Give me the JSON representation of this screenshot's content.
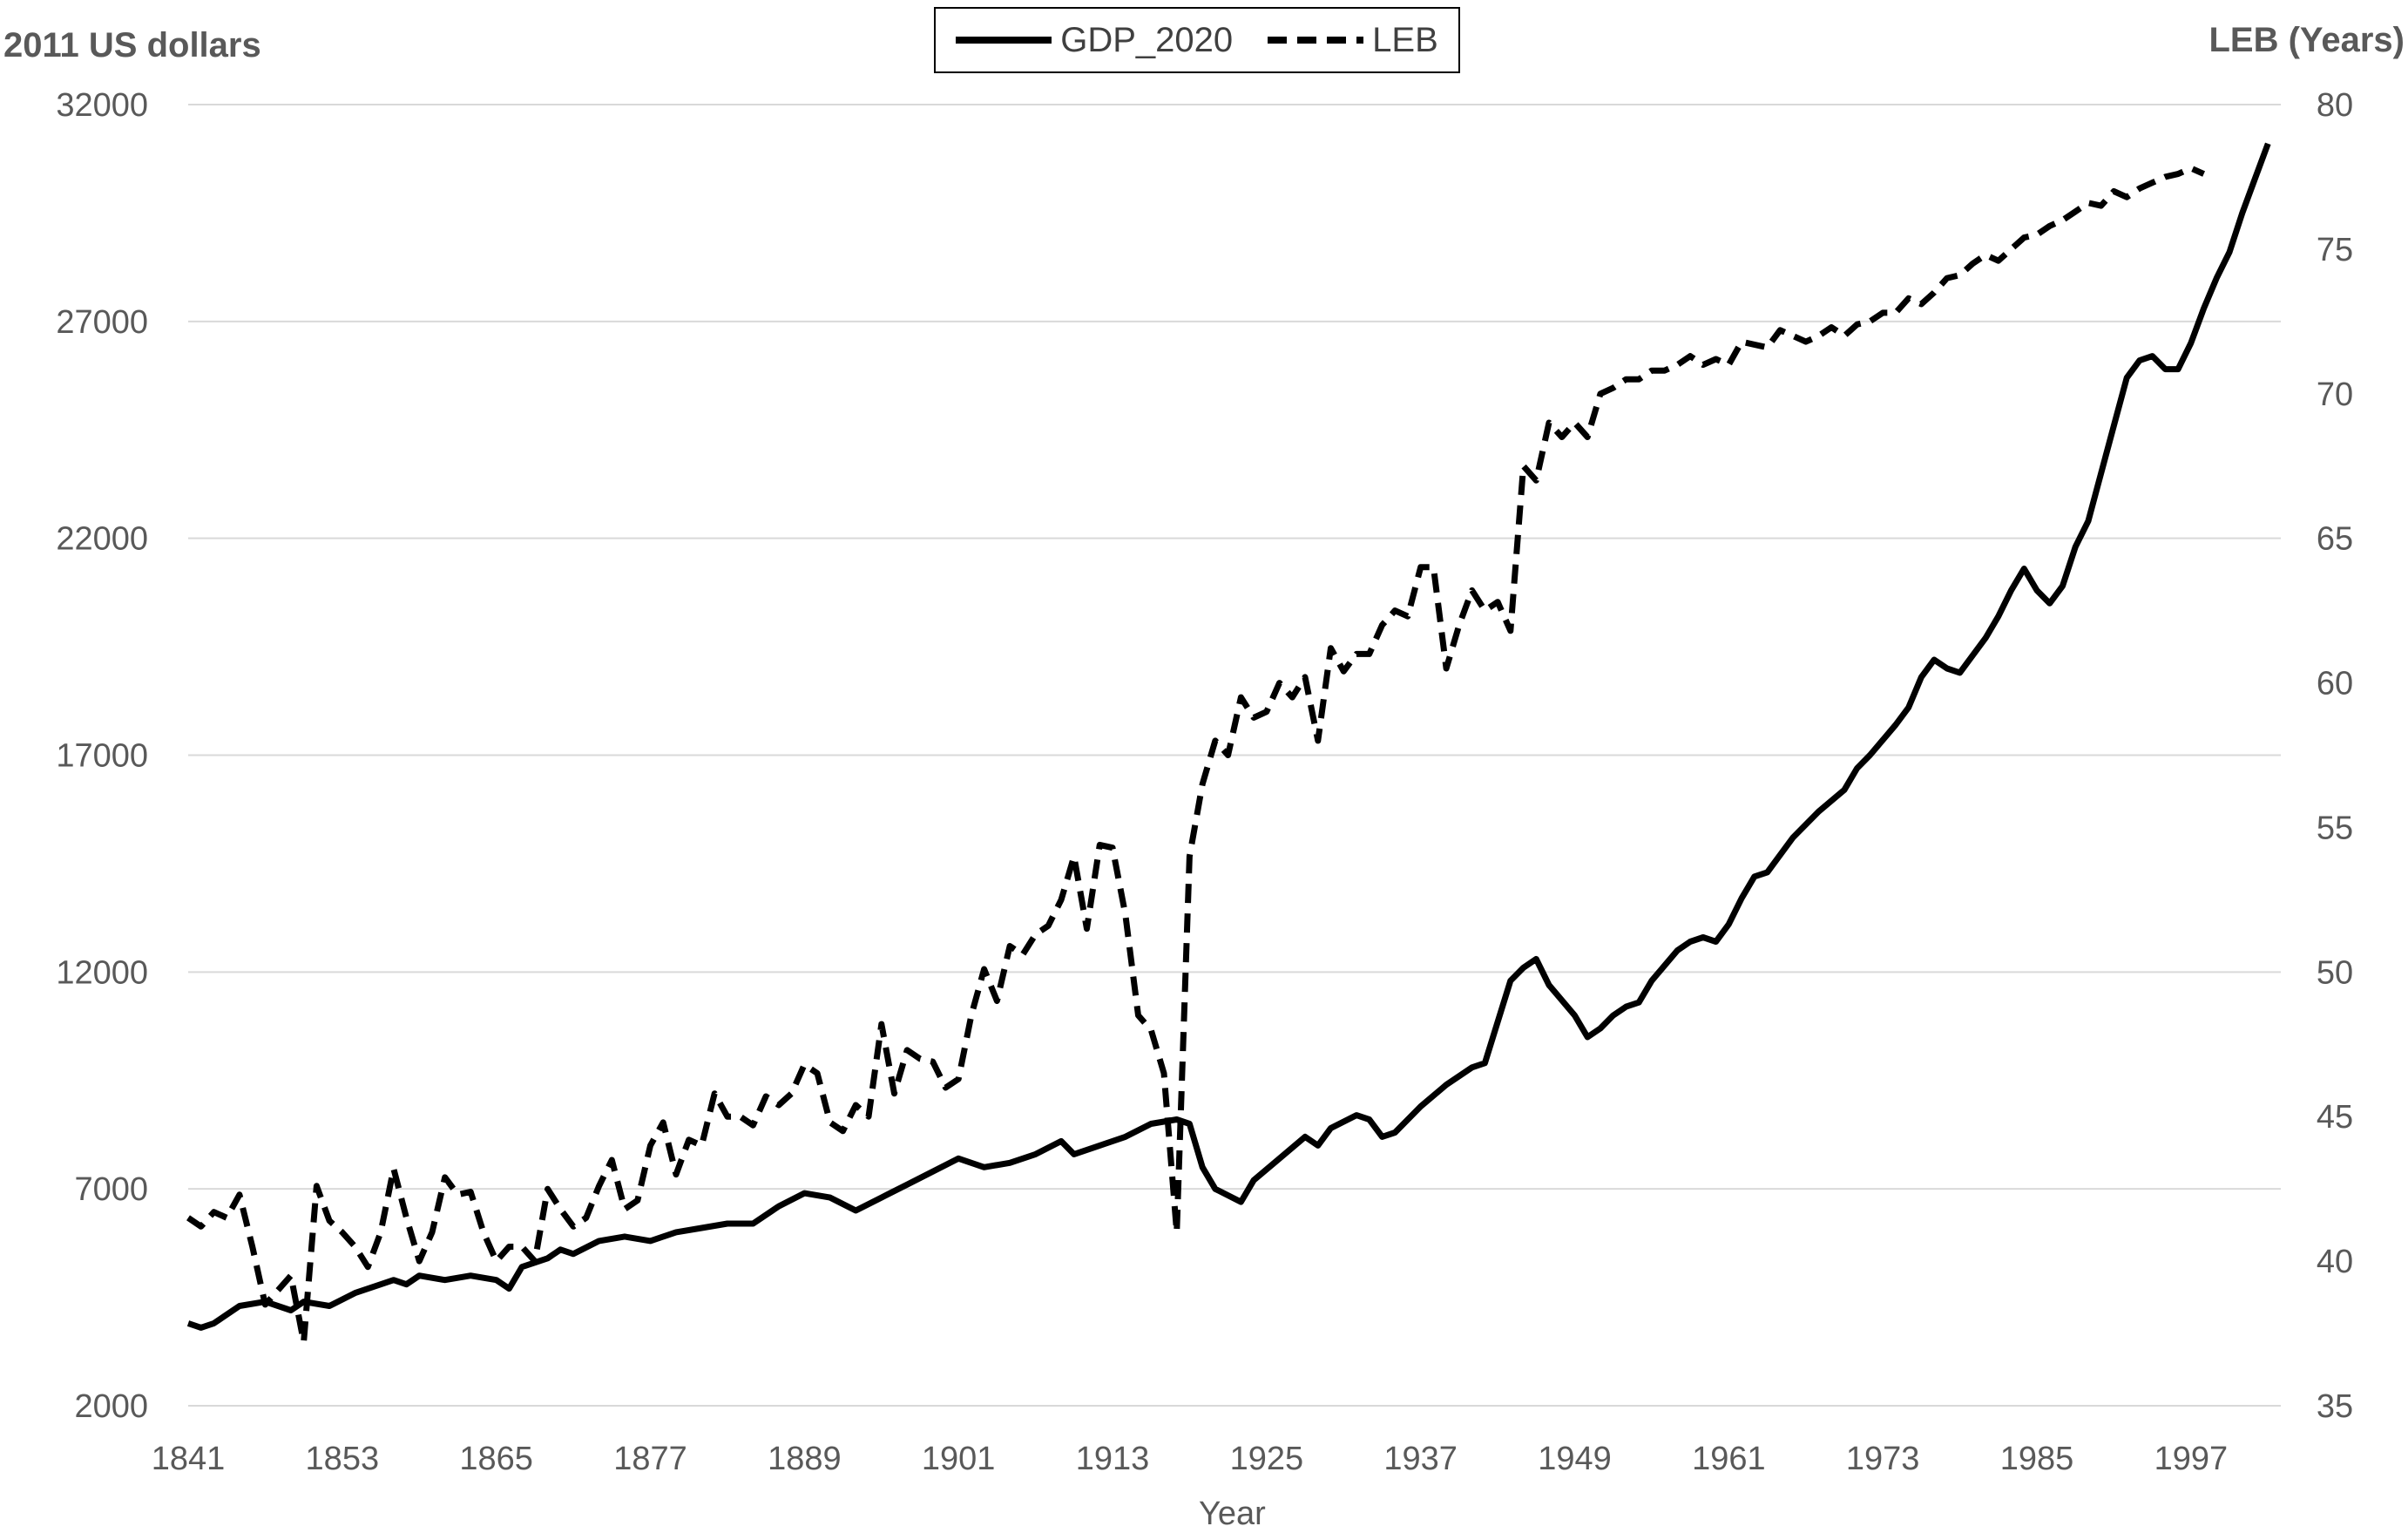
{
  "chart_data": {
    "type": "line",
    "title": "",
    "xlabel": "Year",
    "ylabel_left": "2011 US dollars",
    "ylabel_right": "LEB (Years)",
    "x_ticks": [
      "1841",
      "1853",
      "1865",
      "1877",
      "1889",
      "1901",
      "1913",
      "1925",
      "1937",
      "1949",
      "1961",
      "1973",
      "1985",
      "1997"
    ],
    "y_left_ticks": [
      "2000",
      "7000",
      "12000",
      "17000",
      "22000",
      "27000",
      "32000"
    ],
    "y_right_ticks": [
      "35",
      "40",
      "45",
      "50",
      "55",
      "60",
      "65",
      "70",
      "75",
      "80"
    ],
    "ylim_left": [
      2000,
      32000
    ],
    "ylim_right": [
      35,
      80
    ],
    "xlim": [
      1841,
      1998
    ],
    "grid": "horizontal",
    "legend_position": "top-center",
    "series": [
      {
        "name": "GDP_2020",
        "axis": "left",
        "style": "solid",
        "color": "#000000",
        "points": [
          [
            1841,
            3900
          ],
          [
            1842,
            3800
          ],
          [
            1843,
            3900
          ],
          [
            1845,
            4300
          ],
          [
            1847,
            4400
          ],
          [
            1849,
            4200
          ],
          [
            1850,
            4400
          ],
          [
            1852,
            4300
          ],
          [
            1854,
            4600
          ],
          [
            1856,
            4800
          ],
          [
            1857,
            4900
          ],
          [
            1858,
            4800
          ],
          [
            1859,
            5000
          ],
          [
            1861,
            4900
          ],
          [
            1863,
            5000
          ],
          [
            1865,
            4900
          ],
          [
            1866,
            4700
          ],
          [
            1867,
            5200
          ],
          [
            1869,
            5400
          ],
          [
            1870,
            5600
          ],
          [
            1871,
            5500
          ],
          [
            1873,
            5800
          ],
          [
            1875,
            5900
          ],
          [
            1877,
            5800
          ],
          [
            1879,
            6000
          ],
          [
            1881,
            6100
          ],
          [
            1883,
            6200
          ],
          [
            1885,
            6200
          ],
          [
            1887,
            6600
          ],
          [
            1889,
            6900
          ],
          [
            1891,
            6800
          ],
          [
            1893,
            6500
          ],
          [
            1895,
            6800
          ],
          [
            1897,
            7100
          ],
          [
            1899,
            7400
          ],
          [
            1901,
            7700
          ],
          [
            1903,
            7500
          ],
          [
            1905,
            7600
          ],
          [
            1907,
            7800
          ],
          [
            1909,
            8100
          ],
          [
            1910,
            7800
          ],
          [
            1912,
            8000
          ],
          [
            1914,
            8200
          ],
          [
            1916,
            8500
          ],
          [
            1918,
            8600
          ],
          [
            1919,
            8500
          ],
          [
            1920,
            7500
          ],
          [
            1921,
            7000
          ],
          [
            1923,
            6700
          ],
          [
            1924,
            7200
          ],
          [
            1926,
            7700
          ],
          [
            1928,
            8200
          ],
          [
            1929,
            8000
          ],
          [
            1930,
            8400
          ],
          [
            1932,
            8700
          ],
          [
            1933,
            8600
          ],
          [
            1934,
            8200
          ],
          [
            1935,
            8300
          ],
          [
            1937,
            8900
          ],
          [
            1939,
            9400
          ],
          [
            1941,
            9800
          ],
          [
            1942,
            9900
          ],
          [
            1944,
            11800
          ],
          [
            1945,
            12100
          ],
          [
            1946,
            12300
          ],
          [
            1947,
            11700
          ],
          [
            1949,
            11000
          ],
          [
            1950,
            10500
          ],
          [
            1951,
            10700
          ],
          [
            1952,
            11000
          ],
          [
            1953,
            11200
          ],
          [
            1954,
            11300
          ],
          [
            1955,
            11800
          ],
          [
            1957,
            12500
          ],
          [
            1958,
            12700
          ],
          [
            1959,
            12800
          ],
          [
            1960,
            12700
          ],
          [
            1961,
            13100
          ],
          [
            1962,
            13700
          ],
          [
            1963,
            14200
          ],
          [
            1964,
            14300
          ],
          [
            1966,
            15100
          ],
          [
            1968,
            15700
          ],
          [
            1970,
            16200
          ],
          [
            1971,
            16700
          ],
          [
            1972,
            17000
          ],
          [
            1974,
            17700
          ],
          [
            1975,
            18100
          ],
          [
            1976,
            18800
          ],
          [
            1977,
            19200
          ],
          [
            1978,
            19000
          ],
          [
            1979,
            18900
          ],
          [
            1981,
            19700
          ],
          [
            1982,
            20200
          ],
          [
            1983,
            20800
          ],
          [
            1984,
            21300
          ],
          [
            1985,
            20800
          ],
          [
            1986,
            20500
          ],
          [
            1987,
            20900
          ],
          [
            1988,
            21800
          ],
          [
            1989,
            22400
          ],
          [
            1990,
            23500
          ],
          [
            1991,
            24600
          ],
          [
            1992,
            25700
          ],
          [
            1993,
            26100
          ],
          [
            1994,
            26200
          ],
          [
            1995,
            25900
          ],
          [
            1996,
            25900
          ],
          [
            1997,
            26500
          ],
          [
            1998,
            27300
          ],
          [
            1999,
            28000
          ],
          [
            2000,
            28600
          ],
          [
            2001,
            29500
          ],
          [
            2002,
            30300
          ],
          [
            2003,
            31100
          ]
        ]
      },
      {
        "name": "LEB",
        "axis": "right",
        "style": "dashed",
        "color": "#000000",
        "points": [
          [
            1841,
            41.5
          ],
          [
            1842,
            41.2
          ],
          [
            1843,
            41.7
          ],
          [
            1844,
            41.5
          ],
          [
            1845,
            42.3
          ],
          [
            1846,
            40.5
          ],
          [
            1847,
            38.5
          ],
          [
            1848,
            39.0
          ],
          [
            1849,
            39.5
          ],
          [
            1850,
            37.2
          ],
          [
            1851,
            42.6
          ],
          [
            1852,
            41.4
          ],
          [
            1853,
            41.0
          ],
          [
            1854,
            40.5
          ],
          [
            1855,
            39.8
          ],
          [
            1856,
            41.0
          ],
          [
            1857,
            43.2
          ],
          [
            1858,
            41.5
          ],
          [
            1859,
            40.0
          ],
          [
            1860,
            41.0
          ],
          [
            1861,
            42.9
          ],
          [
            1862,
            42.3
          ],
          [
            1863,
            42.4
          ],
          [
            1864,
            41.0
          ],
          [
            1865,
            40.0
          ],
          [
            1866,
            40.5
          ],
          [
            1867,
            40.5
          ],
          [
            1868,
            40.0
          ],
          [
            1869,
            42.5
          ],
          [
            1870,
            41.8
          ],
          [
            1871,
            41.2
          ],
          [
            1872,
            41.5
          ],
          [
            1873,
            42.6
          ],
          [
            1874,
            43.5
          ],
          [
            1875,
            41.8
          ],
          [
            1876,
            42.1
          ],
          [
            1877,
            44.0
          ],
          [
            1878,
            44.8
          ],
          [
            1879,
            43.0
          ],
          [
            1880,
            44.2
          ],
          [
            1881,
            44.0
          ],
          [
            1882,
            45.8
          ],
          [
            1883,
            45.0
          ],
          [
            1884,
            45.0
          ],
          [
            1885,
            44.7
          ],
          [
            1886,
            45.7
          ],
          [
            1887,
            45.4
          ],
          [
            1888,
            45.8
          ],
          [
            1889,
            46.8
          ],
          [
            1890,
            46.5
          ],
          [
            1891,
            44.8
          ],
          [
            1892,
            44.5
          ],
          [
            1893,
            45.4
          ],
          [
            1894,
            45.0
          ],
          [
            1895,
            48.2
          ],
          [
            1896,
            45.8
          ],
          [
            1897,
            47.3
          ],
          [
            1898,
            47.0
          ],
          [
            1899,
            46.9
          ],
          [
            1900,
            46.0
          ],
          [
            1901,
            46.3
          ],
          [
            1902,
            48.5
          ],
          [
            1903,
            50.1
          ],
          [
            1904,
            49.0
          ],
          [
            1905,
            50.9
          ],
          [
            1906,
            50.6
          ],
          [
            1907,
            51.3
          ],
          [
            1908,
            51.6
          ],
          [
            1909,
            52.5
          ],
          [
            1910,
            54.0
          ],
          [
            1911,
            51.5
          ],
          [
            1912,
            54.4
          ],
          [
            1913,
            54.3
          ],
          [
            1914,
            52.0
          ],
          [
            1915,
            48.5
          ],
          [
            1916,
            48.0
          ],
          [
            1917,
            46.5
          ],
          [
            1918,
            41.0
          ],
          [
            1919,
            54.0
          ],
          [
            1920,
            56.5
          ],
          [
            1921,
            58.0
          ],
          [
            1922,
            57.5
          ],
          [
            1923,
            59.5
          ],
          [
            1924,
            58.8
          ],
          [
            1925,
            59.0
          ],
          [
            1926,
            60.0
          ],
          [
            1927,
            59.5
          ],
          [
            1928,
            60.2
          ],
          [
            1929,
            58.0
          ],
          [
            1930,
            61.2
          ],
          [
            1931,
            60.4
          ],
          [
            1932,
            61.0
          ],
          [
            1933,
            61.0
          ],
          [
            1934,
            62.0
          ],
          [
            1935,
            62.5
          ],
          [
            1936,
            62.3
          ],
          [
            1937,
            64.0
          ],
          [
            1938,
            64.0
          ],
          [
            1939,
            60.5
          ],
          [
            1940,
            62.0
          ],
          [
            1941,
            63.2
          ],
          [
            1942,
            62.5
          ],
          [
            1943,
            62.8
          ],
          [
            1944,
            61.8
          ],
          [
            1945,
            67.5
          ],
          [
            1946,
            67.0
          ],
          [
            1947,
            69.0
          ],
          [
            1948,
            68.5
          ],
          [
            1949,
            69.0
          ],
          [
            1950,
            68.5
          ],
          [
            1951,
            70.0
          ],
          [
            1952,
            70.2
          ],
          [
            1953,
            70.5
          ],
          [
            1954,
            70.5
          ],
          [
            1955,
            70.8
          ],
          [
            1956,
            70.8
          ],
          [
            1957,
            71.0
          ],
          [
            1958,
            71.3
          ],
          [
            1959,
            71.0
          ],
          [
            1960,
            71.2
          ],
          [
            1961,
            71.0
          ],
          [
            1962,
            71.8
          ],
          [
            1963,
            71.7
          ],
          [
            1964,
            71.6
          ],
          [
            1965,
            72.2
          ],
          [
            1966,
            72.0
          ],
          [
            1967,
            71.8
          ],
          [
            1968,
            72.0
          ],
          [
            1969,
            72.3
          ],
          [
            1970,
            72.0
          ],
          [
            1971,
            72.4
          ],
          [
            1972,
            72.5
          ],
          [
            1973,
            72.8
          ],
          [
            1974,
            72.8
          ],
          [
            1975,
            73.3
          ],
          [
            1976,
            73.1
          ],
          [
            1977,
            73.5
          ],
          [
            1978,
            74.0
          ],
          [
            1979,
            74.1
          ],
          [
            1980,
            74.5
          ],
          [
            1981,
            74.8
          ],
          [
            1982,
            74.6
          ],
          [
            1983,
            75.0
          ],
          [
            1984,
            75.4
          ],
          [
            1985,
            75.5
          ],
          [
            1986,
            75.8
          ],
          [
            1987,
            76.0
          ],
          [
            1988,
            76.3
          ],
          [
            1989,
            76.6
          ],
          [
            1990,
            76.5
          ],
          [
            1991,
            77.0
          ],
          [
            1992,
            76.8
          ],
          [
            1993,
            77.1
          ],
          [
            1994,
            77.3
          ],
          [
            1995,
            77.5
          ],
          [
            1996,
            77.6
          ],
          [
            1997,
            77.8
          ],
          [
            1998,
            77.6
          ]
        ]
      }
    ]
  }
}
